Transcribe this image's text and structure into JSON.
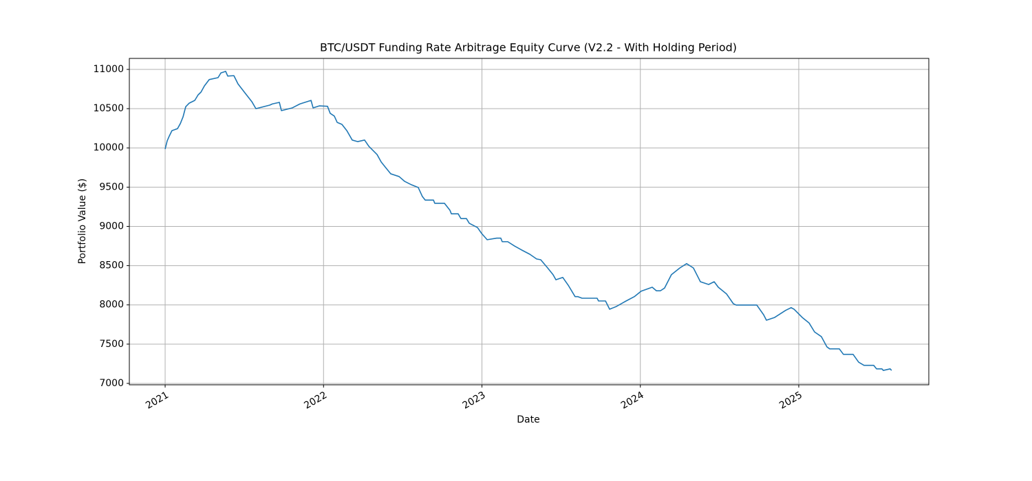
{
  "chart_data": {
    "type": "line",
    "title": "BTC/USDT Funding Rate Arbitrage Equity Curve (V2.2 - With Holding Period)",
    "x_label": "Date",
    "y_label": "Portfolio Value ($)",
    "x": [
      2021.0,
      2021.013,
      2021.026,
      2021.043,
      2021.078,
      2021.096,
      2021.113,
      2021.13,
      2021.152,
      2021.187,
      2021.208,
      2021.226,
      2021.248,
      2021.278,
      2021.334,
      2021.352,
      2021.382,
      2021.395,
      2021.434,
      2021.46,
      2021.504,
      2021.547,
      2021.573,
      2021.66,
      2021.677,
      2021.721,
      2021.734,
      2021.803,
      2021.851,
      2021.921,
      2021.934,
      2021.973,
      2022.025,
      2022.042,
      2022.068,
      2022.086,
      2022.116,
      2022.147,
      2022.181,
      2022.216,
      2022.259,
      2022.286,
      2022.338,
      2022.364,
      2022.39,
      2022.424,
      2022.477,
      2022.511,
      2022.555,
      2022.598,
      2022.624,
      2022.642,
      2022.694,
      2022.702,
      2022.763,
      2022.798,
      2022.807,
      2022.85,
      2022.867,
      2022.902,
      2022.92,
      2022.972,
      2022.998,
      2023.033,
      2023.093,
      2023.119,
      2023.128,
      2023.163,
      2023.206,
      2023.25,
      2023.302,
      2023.345,
      2023.371,
      2023.415,
      2023.449,
      2023.467,
      2023.51,
      2023.545,
      2023.588,
      2023.606,
      2023.632,
      2023.727,
      2023.736,
      2023.78,
      2023.806,
      2023.849,
      2023.901,
      2023.962,
      2024.005,
      2024.075,
      2024.101,
      2024.127,
      2024.153,
      2024.196,
      2024.249,
      2024.292,
      2024.335,
      2024.379,
      2024.431,
      2024.466,
      2024.492,
      2024.544,
      2024.587,
      2024.605,
      2024.735,
      2024.778,
      2024.796,
      2024.848,
      2024.917,
      2024.952,
      2024.97,
      2025.022,
      2025.065,
      2025.1,
      2025.143,
      2025.178,
      2025.195,
      2025.256,
      2025.282,
      2025.343,
      2025.378,
      2025.412,
      2025.473,
      2025.491,
      2025.525,
      2025.534,
      2025.577,
      2025.586
    ],
    "values": [
      9985,
      10090,
      10150,
      10220,
      10245,
      10310,
      10395,
      10525,
      10570,
      10605,
      10675,
      10710,
      10790,
      10870,
      10895,
      10955,
      10975,
      10915,
      10920,
      10815,
      10700,
      10590,
      10500,
      10545,
      10560,
      10580,
      10475,
      10510,
      10560,
      10605,
      10510,
      10535,
      10530,
      10440,
      10405,
      10325,
      10300,
      10220,
      10100,
      10080,
      10100,
      10020,
      9915,
      9820,
      9755,
      9670,
      9635,
      9575,
      9530,
      9495,
      9380,
      9335,
      9335,
      9295,
      9295,
      9205,
      9160,
      9160,
      9100,
      9100,
      9040,
      8985,
      8910,
      8830,
      8850,
      8850,
      8805,
      8805,
      8750,
      8700,
      8645,
      8585,
      8575,
      8470,
      8385,
      8320,
      8350,
      8250,
      8105,
      8105,
      8085,
      8085,
      8050,
      8050,
      7945,
      7980,
      8040,
      8105,
      8175,
      8225,
      8180,
      8180,
      8215,
      8385,
      8470,
      8525,
      8470,
      8295,
      8260,
      8295,
      8225,
      8140,
      8015,
      7998,
      7998,
      7875,
      7805,
      7840,
      7930,
      7965,
      7945,
      7840,
      7770,
      7655,
      7595,
      7465,
      7440,
      7440,
      7370,
      7370,
      7270,
      7230,
      7230,
      7185,
      7185,
      7165,
      7185,
      7165
    ],
    "color": "#1f77b4",
    "xlim": [
      2020.774,
      2025.821
    ],
    "xticks": [
      2021,
      2022,
      2023,
      2024,
      2025
    ],
    "ylim": [
      6982,
      11140
    ],
    "yticks": [
      7000,
      7500,
      8000,
      8500,
      9000,
      9500,
      10000,
      10500,
      11000
    ],
    "grid": true
  }
}
